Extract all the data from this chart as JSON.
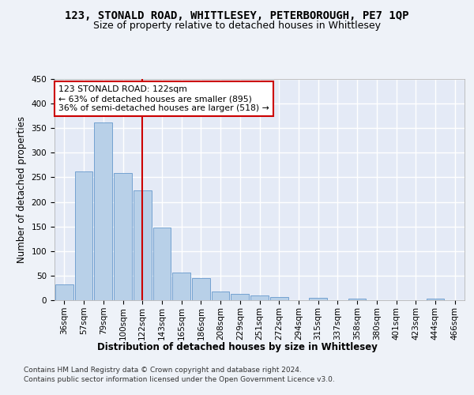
{
  "title": "123, STONALD ROAD, WHITTLESEY, PETERBOROUGH, PE7 1QP",
  "subtitle": "Size of property relative to detached houses in Whittlesey",
  "xlabel": "Distribution of detached houses by size in Whittlesey",
  "ylabel": "Number of detached properties",
  "categories": [
    "36sqm",
    "57sqm",
    "79sqm",
    "100sqm",
    "122sqm",
    "143sqm",
    "165sqm",
    "186sqm",
    "208sqm",
    "229sqm",
    "251sqm",
    "272sqm",
    "294sqm",
    "315sqm",
    "337sqm",
    "358sqm",
    "380sqm",
    "401sqm",
    "423sqm",
    "444sqm",
    "466sqm"
  ],
  "values": [
    32,
    262,
    362,
    258,
    224,
    148,
    56,
    45,
    18,
    13,
    10,
    7,
    0,
    5,
    0,
    3,
    0,
    0,
    0,
    3,
    0
  ],
  "bar_color": "#b8d0e8",
  "bar_edge_color": "#6699cc",
  "red_line_x": 4,
  "annotation_title": "123 STONALD ROAD: 122sqm",
  "annotation_line1": "← 63% of detached houses are smaller (895)",
  "annotation_line2": "36% of semi-detached houses are larger (518) →",
  "annotation_box_color": "#ffffff",
  "annotation_box_edge": "#cc0000",
  "red_line_color": "#cc0000",
  "footer1": "Contains HM Land Registry data © Crown copyright and database right 2024.",
  "footer2": "Contains public sector information licensed under the Open Government Licence v3.0.",
  "ylim": [
    0,
    450
  ],
  "yticks": [
    0,
    50,
    100,
    150,
    200,
    250,
    300,
    350,
    400,
    450
  ],
  "bg_color": "#eef2f8",
  "plot_bg_color": "#e4eaf6",
  "grid_color": "#ffffff",
  "title_fontsize": 10,
  "subtitle_fontsize": 9,
  "axis_label_fontsize": 8.5,
  "tick_fontsize": 7.5
}
